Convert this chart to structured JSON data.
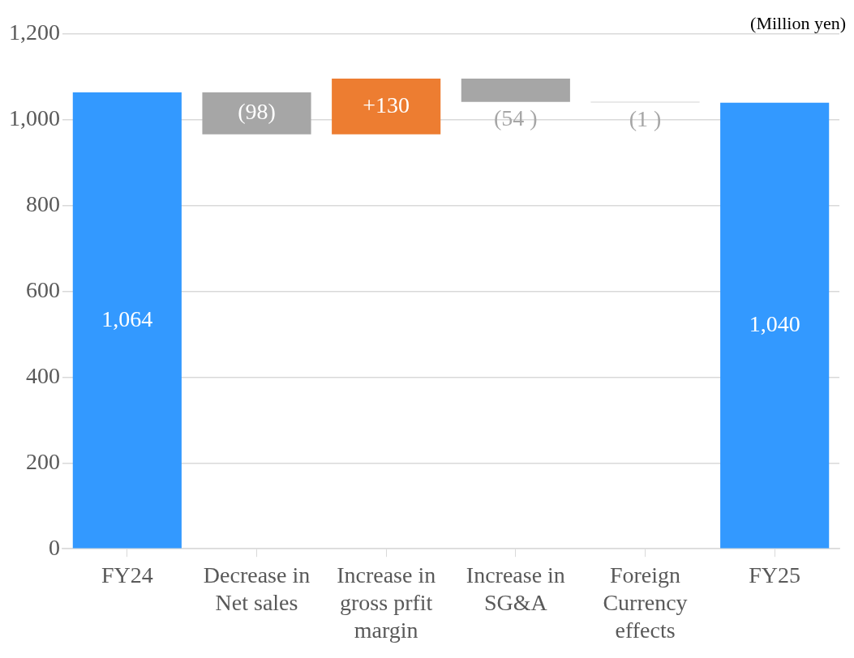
{
  "chart_data": {
    "type": "bar",
    "categories": [
      "FY24",
      "Decrease in Net sales",
      "Increase in gross prfit margin",
      "Increase in SG&A",
      "Foreign Currency effects",
      "FY25"
    ],
    "values": [
      1064,
      -98,
      130,
      -54,
      -1,
      1040
    ],
    "base": [
      0,
      1064,
      966,
      1096,
      1042,
      0
    ],
    "colors": [
      "#3399ff",
      "#a6a6a6",
      "#ed7d31",
      "#a6a6a6",
      "#a6a6a6",
      "#3399ff"
    ],
    "value_labels": [
      "1,064",
      "(98)",
      "+130",
      "(54 )",
      "(1 )",
      "1,040"
    ],
    "ylim": [
      0,
      1200
    ],
    "yticks": [
      0,
      200,
      400,
      600,
      800,
      {
        "value": 1000,
        "label": "1,000"
      },
      {
        "value": 1200,
        "label": "1,200"
      }
    ],
    "grid": "y",
    "legend": false,
    "annotations": [
      "(Million yen)"
    ]
  }
}
